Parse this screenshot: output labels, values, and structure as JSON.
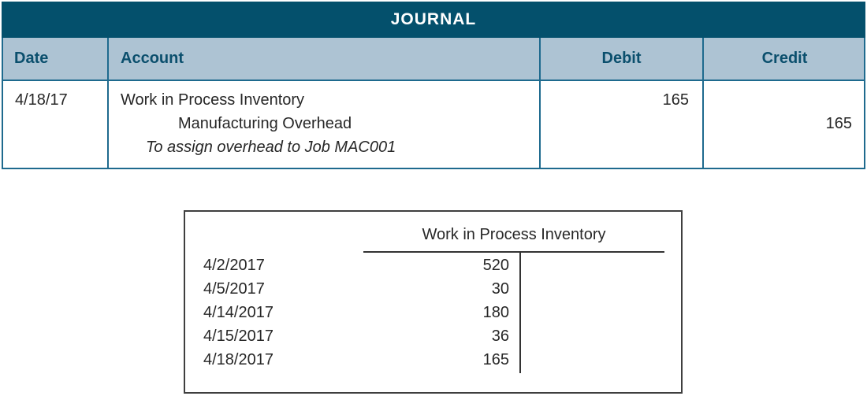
{
  "colors": {
    "journal_band_bg": "#04506c",
    "column_header_bg": "#adc3d3",
    "table_border": "#1e6a8e",
    "header_text": "#0b4f6d",
    "body_text": "#272727",
    "t_account_border": "#3f3f3f"
  },
  "journal": {
    "title": "JOURNAL",
    "columns": [
      "Date",
      "Account",
      "Debit",
      "Credit"
    ],
    "entry": {
      "date": "4/18/17",
      "account_line1": "Work in Process Inventory",
      "account_line2": "Manufacturing Overhead",
      "memo_line": "To assign overhead to Job MAC001",
      "debit": "165",
      "credit": "165"
    }
  },
  "t_account": {
    "title": "Work in Process Inventory",
    "debit_entries": [
      {
        "date": "4/2/2017",
        "amount": "520"
      },
      {
        "date": "4/5/2017",
        "amount": "30"
      },
      {
        "date": "4/14/2017",
        "amount": "180"
      },
      {
        "date": "4/15/2017",
        "amount": "36"
      },
      {
        "date": "4/18/2017",
        "amount": "165"
      }
    ],
    "credit_entries": []
  }
}
